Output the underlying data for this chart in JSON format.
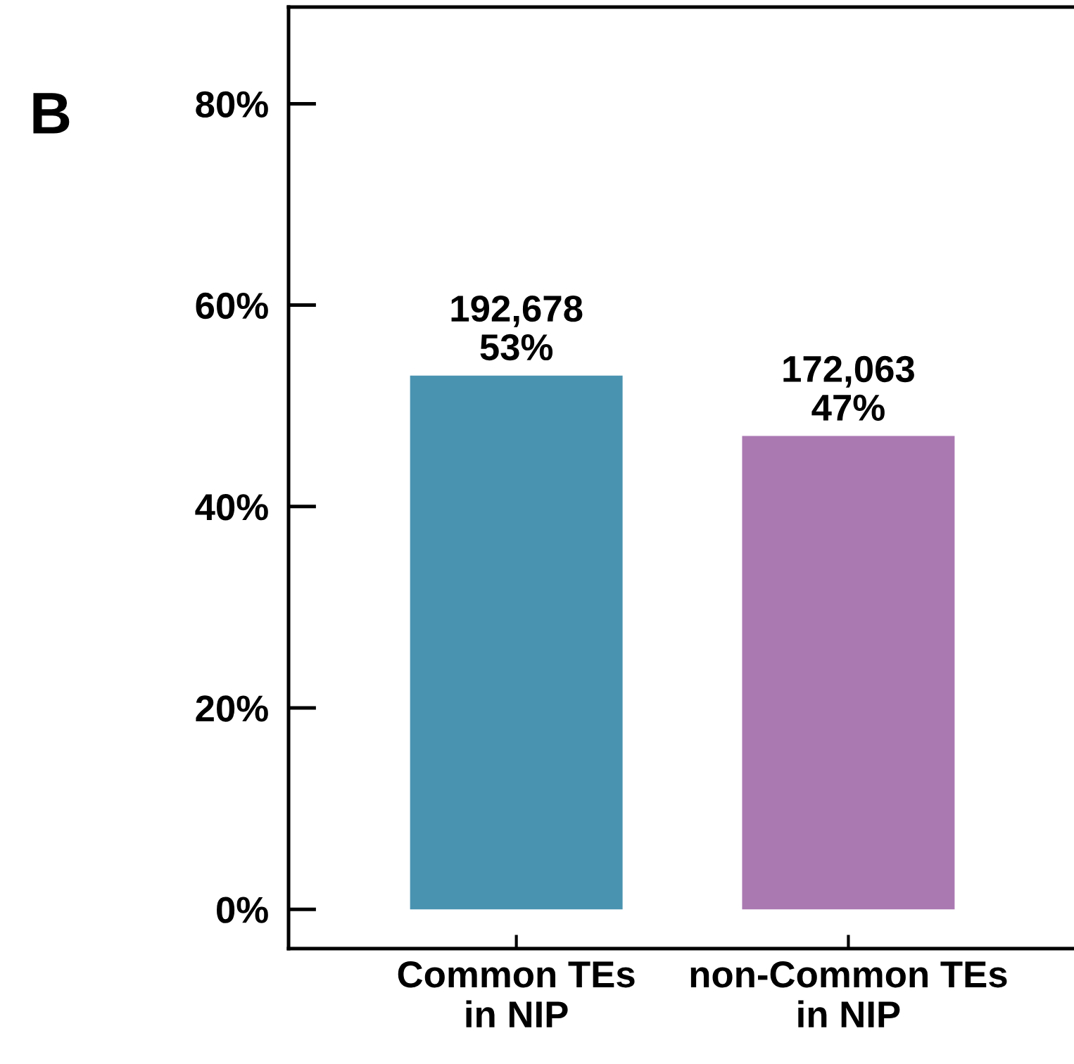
{
  "chart_data": {
    "type": "bar",
    "categories": [
      "Common TEs\nin NIP",
      "non-Common TEs\nin NIP"
    ],
    "values": [
      53,
      47
    ],
    "colors": [
      "#4a93b0",
      "#ab79b2"
    ],
    "value_labels": [
      "192,678\n53%",
      "172,063\n47%"
    ],
    "ylim": [
      -3.9,
      89.6
    ],
    "yticks": [
      {
        "value": 0,
        "label": "0%"
      },
      {
        "value": 20,
        "label": "20%"
      },
      {
        "value": 40,
        "label": "40%"
      },
      {
        "value": 60,
        "label": "60%"
      },
      {
        "value": 80,
        "label": "80%"
      }
    ],
    "annotations": [
      "B"
    ],
    "grid": false,
    "legend": false
  }
}
